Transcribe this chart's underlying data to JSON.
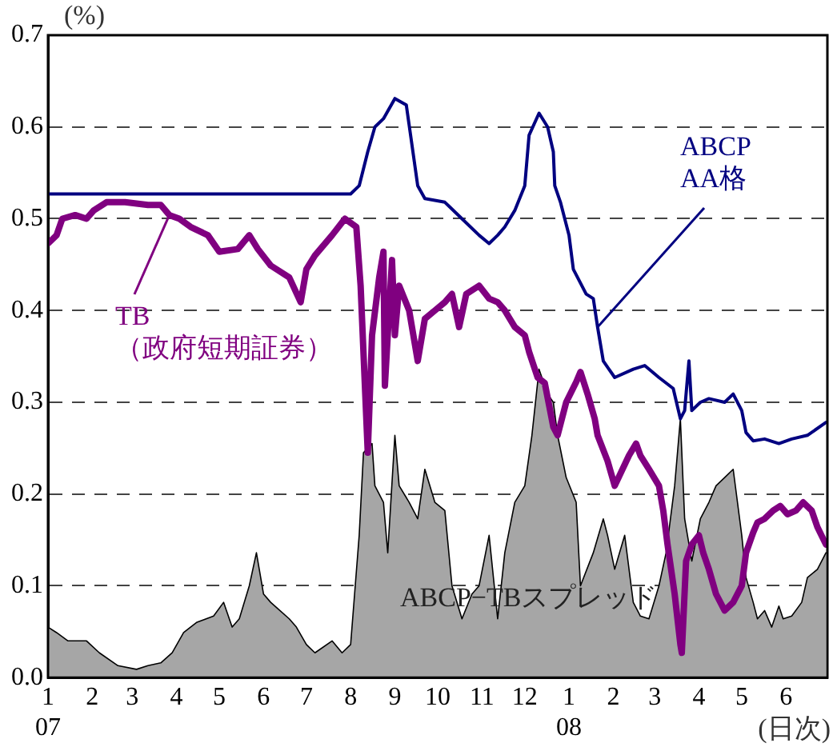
{
  "chart_data": {
    "type": "line",
    "ylabel": "(%)",
    "xlabel": "(日次)",
    "xlim": [
      "2007-01-01",
      "2008-06-30"
    ],
    "xticks": [
      {
        "value": "2007-01",
        "label": "1\n07"
      },
      {
        "value": "2007-02",
        "label": "2"
      },
      {
        "value": "2007-03",
        "label": "3"
      },
      {
        "value": "2007-04",
        "label": "4"
      },
      {
        "value": "2007-05",
        "label": "5"
      },
      {
        "value": "2007-06",
        "label": "6"
      },
      {
        "value": "2007-07",
        "label": "7"
      },
      {
        "value": "2007-08",
        "label": "8"
      },
      {
        "value": "2007-09",
        "label": "9"
      },
      {
        "value": "2007-10",
        "label": "10"
      },
      {
        "value": "2007-11",
        "label": "11"
      },
      {
        "value": "2007-12",
        "label": "12"
      },
      {
        "value": "2008-01",
        "label": "1\n08"
      },
      {
        "value": "2008-02",
        "label": "2"
      },
      {
        "value": "2008-03",
        "label": "3"
      },
      {
        "value": "2008-04",
        "label": "4"
      },
      {
        "value": "2008-05",
        "label": "5"
      },
      {
        "value": "2008-06",
        "label": "6"
      }
    ],
    "ylim": [
      0,
      0.7
    ],
    "yticks": [
      {
        "value": 0,
        "label": "0.0"
      },
      0.1,
      0.2,
      0.3,
      0.4,
      0.5,
      0.6,
      0.7
    ],
    "grid": "y",
    "legend": false,
    "marker": "none",
    "line_style": "solid",
    "series": [
      {
        "name": "ABCP−TBスプレッド",
        "type": "area",
        "color": "#a6a6a6",
        "x": [
          "2007-01-01",
          "2007-01-07",
          "2007-01-15",
          "2007-01-28",
          "2007-02-06",
          "2007-02-19",
          "2007-03-04",
          "2007-03-12",
          "2007-03-21",
          "2007-03-29",
          "2007-04-06",
          "2007-04-15",
          "2007-04-27",
          "2007-05-04",
          "2007-05-10",
          "2007-05-15",
          "2007-05-22",
          "2007-05-27",
          "2007-06-01",
          "2007-06-06",
          "2007-06-19",
          "2007-06-24",
          "2007-07-01",
          "2007-07-07",
          "2007-07-19",
          "2007-07-26",
          "2007-08-01",
          "2007-08-07",
          "2007-08-10",
          "2007-08-16",
          "2007-08-18",
          "2007-08-24",
          "2007-08-27",
          "2007-09-01",
          "2007-09-04",
          "2007-09-11",
          "2007-09-17",
          "2007-09-22",
          "2007-09-29",
          "2007-10-06",
          "2007-10-11",
          "2007-10-18",
          "2007-10-25",
          "2007-10-30",
          "2007-11-06",
          "2007-11-12",
          "2007-11-17",
          "2007-11-24",
          "2007-12-01",
          "2007-12-06",
          "2007-12-11",
          "2007-12-17",
          "2007-12-21",
          "2007-12-24",
          "2007-12-30",
          "2008-01-06",
          "2008-01-09",
          "2008-01-18",
          "2008-01-25",
          "2008-01-28",
          "2008-02-02",
          "2008-02-09",
          "2008-02-15",
          "2008-02-20",
          "2008-02-26",
          "2008-03-04",
          "2008-03-09",
          "2008-03-15",
          "2008-03-19",
          "2008-03-22",
          "2008-03-27",
          "2008-04-02",
          "2008-04-08",
          "2008-04-13",
          "2008-04-19",
          "2008-04-25",
          "2008-05-01",
          "2008-05-04",
          "2008-05-09",
          "2008-05-12",
          "2008-05-17",
          "2008-05-22",
          "2008-05-27",
          "2008-05-30",
          "2008-06-05",
          "2008-06-12",
          "2008-06-16",
          "2008-06-23",
          "2008-06-29"
        ],
        "values": [
          0.055,
          0.049,
          0.04,
          0.04,
          0.027,
          0.013,
          0.009,
          0.013,
          0.016,
          0.027,
          0.049,
          0.06,
          0.067,
          0.082,
          0.055,
          0.064,
          0.1,
          0.136,
          0.091,
          0.082,
          0.064,
          0.055,
          0.036,
          0.027,
          0.04,
          0.027,
          0.036,
          0.155,
          0.245,
          0.255,
          0.209,
          0.191,
          0.136,
          0.264,
          0.209,
          0.191,
          0.173,
          0.227,
          0.191,
          0.182,
          0.1,
          0.064,
          0.091,
          0.1,
          0.155,
          0.064,
          0.136,
          0.191,
          0.209,
          0.264,
          0.336,
          0.309,
          0.3,
          0.264,
          0.218,
          0.191,
          0.1,
          0.136,
          0.173,
          0.155,
          0.118,
          0.155,
          0.082,
          0.067,
          0.064,
          0.1,
          0.136,
          0.209,
          0.282,
          0.173,
          0.127,
          0.173,
          0.191,
          0.209,
          0.218,
          0.227,
          0.155,
          0.109,
          0.082,
          0.064,
          0.073,
          0.055,
          0.078,
          0.064,
          0.067,
          0.082,
          0.109,
          0.118,
          0.136
        ]
      },
      {
        "name": "ABCP\nAA格",
        "type": "line",
        "color": "#000080",
        "x": [
          "2007-01-01",
          "2007-08-01",
          "2007-08-07",
          "2007-08-13",
          "2007-08-18",
          "2007-08-24",
          "2007-09-01",
          "2007-09-09",
          "2007-09-12",
          "2007-09-17",
          "2007-09-22",
          "2007-10-06",
          "2007-10-18",
          "2007-10-30",
          "2007-11-06",
          "2007-11-12",
          "2007-11-17",
          "2007-11-24",
          "2007-12-01",
          "2007-12-04",
          "2007-12-11",
          "2007-12-17",
          "2007-12-21",
          "2007-12-22",
          "2007-12-26",
          "2008-01-01",
          "2008-01-04",
          "2008-01-13",
          "2008-01-18",
          "2008-01-21",
          "2008-01-25",
          "2008-02-02",
          "2008-02-15",
          "2008-02-23",
          "2008-03-04",
          "2008-03-14",
          "2008-03-19",
          "2008-03-22",
          "2008-03-25",
          "2008-03-27",
          "2008-04-02",
          "2008-04-08",
          "2008-04-19",
          "2008-04-25",
          "2008-05-01",
          "2008-05-04",
          "2008-05-09",
          "2008-05-17",
          "2008-05-27",
          "2008-06-05",
          "2008-06-16",
          "2008-06-29"
        ],
        "values": [
          0.527,
          0.527,
          0.536,
          0.573,
          0.6,
          0.609,
          0.631,
          0.624,
          0.591,
          0.536,
          0.522,
          0.518,
          0.5,
          0.482,
          0.473,
          0.482,
          0.491,
          0.509,
          0.536,
          0.591,
          0.615,
          0.6,
          0.573,
          0.536,
          0.518,
          0.482,
          0.445,
          0.418,
          0.413,
          0.382,
          0.345,
          0.327,
          0.336,
          0.34,
          0.327,
          0.315,
          0.282,
          0.291,
          0.345,
          0.291,
          0.3,
          0.304,
          0.3,
          0.309,
          0.291,
          0.267,
          0.258,
          0.26,
          0.255,
          0.26,
          0.264,
          0.278
        ]
      },
      {
        "name": "TB\n（政府短期証券）",
        "type": "line",
        "color": "#800080",
        "x": [
          "2007-01-01",
          "2007-01-07",
          "2007-01-11",
          "2007-01-20",
          "2007-01-28",
          "2007-02-02",
          "2007-02-11",
          "2007-02-24",
          "2007-03-12",
          "2007-03-21",
          "2007-03-27",
          "2007-04-03",
          "2007-04-11",
          "2007-04-23",
          "2007-05-01",
          "2007-05-14",
          "2007-05-22",
          "2007-05-28",
          "2007-06-06",
          "2007-06-19",
          "2007-06-27",
          "2007-07-01",
          "2007-07-07",
          "2007-07-19",
          "2007-07-28",
          "2007-08-05",
          "2007-08-08",
          "2007-08-13",
          "2007-08-16",
          "2007-08-21",
          "2007-08-24",
          "2007-08-25",
          "2007-08-30",
          "2007-09-01",
          "2007-09-04",
          "2007-09-11",
          "2007-09-17",
          "2007-09-22",
          "2007-09-29",
          "2007-10-06",
          "2007-10-11",
          "2007-10-16",
          "2007-10-21",
          "2007-10-30",
          "2007-11-06",
          "2007-11-12",
          "2007-11-17",
          "2007-11-24",
          "2007-12-01",
          "2007-12-04",
          "2007-12-10",
          "2007-12-15",
          "2007-12-21",
          "2007-12-24",
          "2007-12-30",
          "2008-01-06",
          "2008-01-09",
          "2008-01-14",
          "2008-01-19",
          "2008-01-21",
          "2008-01-28",
          "2008-02-02",
          "2008-02-12",
          "2008-02-17",
          "2008-02-20",
          "2008-02-26",
          "2008-03-04",
          "2008-03-07",
          "2008-03-10",
          "2008-03-15",
          "2008-03-19",
          "2008-03-20",
          "2008-03-23",
          "2008-03-27",
          "2008-04-01",
          "2008-04-04",
          "2008-04-08",
          "2008-04-13",
          "2008-04-19",
          "2008-04-25",
          "2008-05-01",
          "2008-05-04",
          "2008-05-09",
          "2008-05-12",
          "2008-05-17",
          "2008-05-23",
          "2008-05-28",
          "2008-06-02",
          "2008-06-08",
          "2008-06-13",
          "2008-06-19",
          "2008-06-23",
          "2008-06-29"
        ],
        "values": [
          0.473,
          0.482,
          0.5,
          0.504,
          0.5,
          0.509,
          0.518,
          0.518,
          0.515,
          0.515,
          0.504,
          0.5,
          0.491,
          0.482,
          0.464,
          0.467,
          0.482,
          0.467,
          0.449,
          0.436,
          0.409,
          0.445,
          0.46,
          0.482,
          0.5,
          0.491,
          0.427,
          0.245,
          0.373,
          0.436,
          0.464,
          0.318,
          0.455,
          0.373,
          0.427,
          0.4,
          0.345,
          0.391,
          0.4,
          0.409,
          0.418,
          0.382,
          0.418,
          0.427,
          0.413,
          0.409,
          0.4,
          0.382,
          0.373,
          0.355,
          0.327,
          0.321,
          0.273,
          0.264,
          0.3,
          0.322,
          0.333,
          0.309,
          0.282,
          0.264,
          0.236,
          0.209,
          0.242,
          0.255,
          0.242,
          0.227,
          0.209,
          0.182,
          0.145,
          0.091,
          0.036,
          0.027,
          0.127,
          0.145,
          0.155,
          0.136,
          0.118,
          0.091,
          0.073,
          0.082,
          0.1,
          0.136,
          0.158,
          0.169,
          0.173,
          0.182,
          0.187,
          0.178,
          0.182,
          0.191,
          0.182,
          0.164,
          0.145
        ]
      }
    ]
  }
}
